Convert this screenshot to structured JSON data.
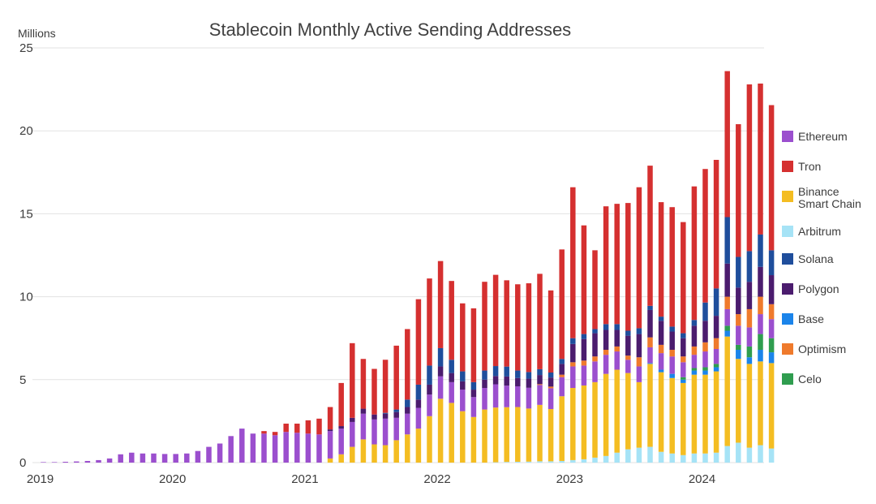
{
  "colors": {
    "Ethereum": "#9b4fce",
    "Tron": "#d53030",
    "Binance Smart Chain": "#f4bd22",
    "Arbitrum": "#a6e3f6",
    "Solana": "#1f4e9c",
    "Polygon": "#4b1c6e",
    "Base": "#1b84ea",
    "Optimism": "#ef7a2c",
    "Celo": "#2f9d4f"
  },
  "chart_data": {
    "type": "bar",
    "stacked": true,
    "title": "Stablecoin Monthly Active Sending Addresses",
    "unit_label": "Millions",
    "ylim": [
      0,
      25
    ],
    "yticks": [
      "0",
      "5",
      "10",
      "15",
      "20",
      "25"
    ],
    "grid": true,
    "legend": "right",
    "x_ticks": [
      {
        "label": "2019",
        "month": 0
      },
      {
        "label": "2020",
        "month": 12
      },
      {
        "label": "2021",
        "month": 24
      },
      {
        "label": "2022",
        "month": 36
      },
      {
        "label": "2023",
        "month": 48
      },
      {
        "label": "2024",
        "month": 60
      }
    ],
    "stack_order": [
      "Arbitrum",
      "Binance Smart Chain",
      "Base",
      "Celo",
      "Ethereum",
      "Optimism",
      "Polygon",
      "Solana",
      "Tron"
    ],
    "legend_order": [
      "Ethereum",
      "Tron",
      "Binance Smart Chain",
      "Arbitrum",
      "Solana",
      "Polygon",
      "Base",
      "Optimism",
      "Celo"
    ],
    "legend_labels": [
      "Ethereum",
      "Tron",
      "Binance\nSmart Chain",
      "Arbitrum",
      "Solana",
      "Polygon",
      "Base",
      "Optimism",
      "Celo"
    ],
    "months": [
      "2019-01",
      "2019-02",
      "2019-03",
      "2019-04",
      "2019-05",
      "2019-06",
      "2019-07",
      "2019-08",
      "2019-09",
      "2019-10",
      "2019-11",
      "2019-12",
      "2020-01",
      "2020-02",
      "2020-03",
      "2020-04",
      "2020-05",
      "2020-06",
      "2020-07",
      "2020-08",
      "2020-09",
      "2020-10",
      "2020-11",
      "2020-12",
      "2021-01",
      "2021-02",
      "2021-03",
      "2021-04",
      "2021-05",
      "2021-06",
      "2021-07",
      "2021-08",
      "2021-09",
      "2021-10",
      "2021-11",
      "2021-12",
      "2022-01",
      "2022-02",
      "2022-03",
      "2022-04",
      "2022-05",
      "2022-06",
      "2022-07",
      "2022-08",
      "2022-09",
      "2022-10",
      "2022-11",
      "2022-12",
      "2023-01",
      "2023-02",
      "2023-03",
      "2023-04",
      "2023-05",
      "2023-06",
      "2023-07",
      "2023-08",
      "2023-09",
      "2023-10",
      "2023-11",
      "2023-12",
      "2024-01",
      "2024-02",
      "2024-03",
      "2024-04",
      "2024-05",
      "2024-06",
      "2024-07"
    ],
    "series": [
      {
        "name": "Ethereum",
        "values": [
          0.03,
          0.03,
          0.05,
          0.07,
          0.1,
          0.15,
          0.25,
          0.5,
          0.6,
          0.55,
          0.55,
          0.52,
          0.52,
          0.55,
          0.7,
          0.95,
          1.15,
          1.6,
          2.05,
          1.75,
          1.75,
          1.65,
          1.85,
          1.8,
          1.75,
          1.7,
          1.65,
          1.55,
          1.5,
          1.55,
          1.5,
          1.6,
          1.35,
          1.25,
          1.25,
          1.3,
          1.35,
          1.25,
          1.3,
          1.2,
          1.3,
          1.4,
          1.3,
          1.25,
          1.25,
          1.2,
          1.25,
          1.15,
          1.3,
          1.2,
          1.25,
          1.15,
          1.1,
          0.8,
          0.95,
          0.95,
          1.0,
          1.05,
          0.9,
          0.8,
          0.95,
          0.9,
          1.0,
          1.15,
          1.15,
          1.2,
          1.15
        ]
      },
      {
        "name": "Tron",
        "values": [
          0,
          0,
          0,
          0,
          0,
          0,
          0,
          0,
          0,
          0,
          0,
          0,
          0,
          0,
          0,
          0,
          0,
          0,
          0,
          0,
          0.15,
          0.2,
          0.5,
          0.55,
          0.8,
          0.95,
          1.35,
          2.6,
          4.5,
          3.0,
          2.75,
          3.2,
          3.85,
          4.25,
          5.15,
          5.25,
          5.25,
          4.75,
          4.1,
          4.45,
          5.35,
          5.5,
          5.2,
          5.2,
          5.35,
          5.75,
          4.95,
          6.6,
          9.1,
          6.55,
          4.75,
          7.1,
          7.25,
          7.7,
          8.5,
          8.45,
          6.9,
          7.2,
          6.7,
          8.05,
          8.05,
          7.75,
          8.8,
          8.0,
          10.05,
          9.1,
          8.75
        ]
      },
      {
        "name": "Binance Smart Chain",
        "values": [
          0,
          0,
          0,
          0,
          0,
          0,
          0,
          0,
          0,
          0,
          0,
          0,
          0,
          0,
          0,
          0,
          0,
          0,
          0,
          0,
          0,
          0,
          0,
          0,
          0,
          0,
          0.25,
          0.5,
          0.95,
          1.4,
          1.1,
          1.05,
          1.35,
          1.7,
          2.05,
          2.8,
          3.85,
          3.6,
          3.1,
          2.75,
          3.2,
          3.3,
          3.3,
          3.3,
          3.2,
          3.4,
          3.15,
          3.9,
          4.35,
          4.45,
          4.55,
          4.95,
          5.0,
          4.6,
          3.95,
          5.0,
          4.8,
          4.55,
          4.35,
          4.75,
          4.75,
          4.9,
          6.6,
          5.05,
          5.05,
          5.05,
          5.15
        ]
      },
      {
        "name": "Arbitrum",
        "values": [
          0,
          0,
          0,
          0,
          0,
          0,
          0,
          0,
          0,
          0,
          0,
          0,
          0,
          0,
          0,
          0,
          0,
          0,
          0,
          0,
          0,
          0,
          0,
          0,
          0,
          0,
          0,
          0,
          0,
          0,
          0,
          0,
          0,
          0,
          0,
          0,
          0,
          0,
          0,
          0,
          0,
          0.02,
          0.04,
          0.05,
          0.06,
          0.08,
          0.08,
          0.1,
          0.15,
          0.2,
          0.3,
          0.4,
          0.6,
          0.8,
          0.9,
          0.95,
          0.65,
          0.55,
          0.45,
          0.55,
          0.55,
          0.6,
          1.0,
          1.2,
          0.9,
          1.05,
          0.85
        ]
      },
      {
        "name": "Solana",
        "values": [
          0,
          0,
          0,
          0,
          0,
          0,
          0,
          0,
          0,
          0,
          0,
          0,
          0,
          0,
          0,
          0,
          0,
          0,
          0,
          0,
          0,
          0,
          0,
          0,
          0,
          0,
          0,
          0,
          0,
          0,
          0,
          0.05,
          0.15,
          0.45,
          0.9,
          1.15,
          1.1,
          0.8,
          0.6,
          0.45,
          0.55,
          0.6,
          0.6,
          0.45,
          0.4,
          0.35,
          0.3,
          0.3,
          0.35,
          0.3,
          0.25,
          0.35,
          0.35,
          0.3,
          0.35,
          0.25,
          0.25,
          0.3,
          0.3,
          0.35,
          1.1,
          1.65,
          2.8,
          1.85,
          1.85,
          1.95,
          1.5
        ]
      },
      {
        "name": "Polygon",
        "values": [
          0,
          0,
          0,
          0,
          0,
          0,
          0,
          0,
          0,
          0,
          0,
          0,
          0,
          0,
          0,
          0,
          0,
          0,
          0,
          0,
          0,
          0,
          0,
          0,
          0,
          0,
          0.1,
          0.15,
          0.25,
          0.3,
          0.3,
          0.3,
          0.35,
          0.4,
          0.5,
          0.6,
          0.6,
          0.55,
          0.5,
          0.45,
          0.5,
          0.5,
          0.55,
          0.5,
          0.55,
          0.55,
          0.55,
          0.65,
          1.1,
          1.3,
          1.4,
          1.2,
          1.0,
          1.2,
          1.4,
          1.65,
          1.45,
          1.1,
          1.1,
          1.25,
          1.3,
          1.35,
          2.0,
          1.6,
          1.65,
          1.8,
          1.75
        ]
      },
      {
        "name": "Base",
        "values": [
          0,
          0,
          0,
          0,
          0,
          0,
          0,
          0,
          0,
          0,
          0,
          0,
          0,
          0,
          0,
          0,
          0,
          0,
          0,
          0,
          0,
          0,
          0,
          0,
          0,
          0,
          0,
          0,
          0,
          0,
          0,
          0,
          0,
          0,
          0,
          0,
          0,
          0,
          0,
          0,
          0,
          0,
          0,
          0,
          0,
          0,
          0,
          0,
          0,
          0,
          0,
          0,
          0,
          0,
          0,
          0.05,
          0.15,
          0.25,
          0.2,
          0.25,
          0.25,
          0.25,
          0.35,
          0.55,
          0.4,
          0.7,
          0.65
        ]
      },
      {
        "name": "Optimism",
        "values": [
          0,
          0,
          0,
          0,
          0,
          0,
          0,
          0,
          0,
          0,
          0,
          0,
          0,
          0,
          0,
          0,
          0,
          0,
          0,
          0,
          0,
          0,
          0,
          0,
          0,
          0,
          0,
          0,
          0,
          0,
          0,
          0,
          0,
          0,
          0,
          0,
          0,
          0,
          0,
          0,
          0,
          0,
          0,
          0,
          0,
          0.05,
          0.1,
          0.15,
          0.25,
          0.3,
          0.3,
          0.3,
          0.3,
          0.25,
          0.55,
          0.6,
          0.5,
          0.4,
          0.35,
          0.5,
          0.55,
          0.65,
          0.75,
          0.7,
          1.1,
          1.05,
          0.9
        ]
      },
      {
        "name": "Celo",
        "values": [
          0,
          0,
          0,
          0,
          0,
          0,
          0,
          0,
          0,
          0,
          0,
          0,
          0,
          0,
          0,
          0,
          0,
          0,
          0,
          0,
          0,
          0,
          0,
          0,
          0,
          0,
          0,
          0,
          0,
          0,
          0,
          0,
          0,
          0,
          0,
          0,
          0,
          0,
          0,
          0,
          0,
          0,
          0,
          0,
          0,
          0,
          0,
          0,
          0,
          0,
          0,
          0,
          0,
          0,
          0,
          0,
          0,
          0,
          0.15,
          0.15,
          0.2,
          0.2,
          0.3,
          0.3,
          0.65,
          0.95,
          0.85
        ]
      }
    ]
  }
}
